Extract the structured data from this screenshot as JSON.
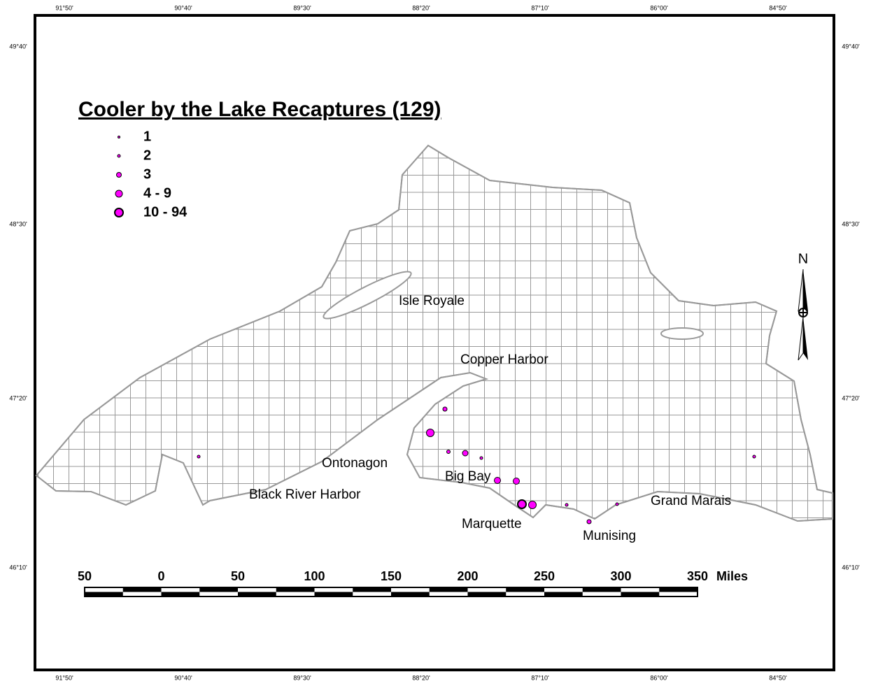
{
  "title": "Cooler by the Lake Recaptures (129)",
  "legend": [
    "1",
    "2",
    "3",
    "4 - 9",
    "10 - 94"
  ],
  "places": [
    "Isle Royale",
    "Copper Harbor",
    "Ontonagon",
    "Big Bay",
    "Black River Harbor",
    "Marquette",
    "Munising",
    "Grand Marais"
  ],
  "scale_bar": {
    "labels": [
      "50",
      "0",
      "50",
      "100",
      "150",
      "200",
      "250",
      "300",
      "350"
    ],
    "unit": "Miles"
  },
  "north": "N",
  "graticule": {
    "longitudes": [
      "91°50'",
      "90°40'",
      "89°30'",
      "88°20'",
      "87°10'",
      "86°00'",
      "84°50'"
    ],
    "latitudes": [
      "49°40'",
      "48°30'",
      "47°20'",
      "46°10'"
    ]
  }
}
